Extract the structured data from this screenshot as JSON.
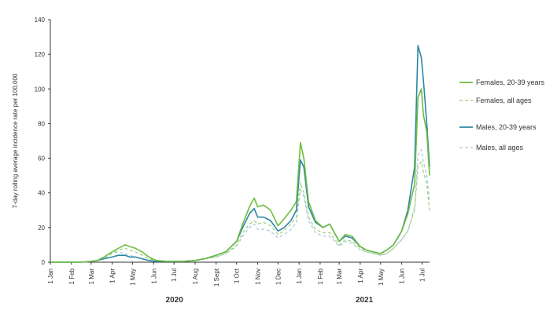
{
  "chart_data": {
    "type": "line",
    "title": "",
    "xlabel": "",
    "ylabel": "7-day rolling average incidence rate per 100,000",
    "ylim": [
      0,
      140
    ],
    "yticks": [
      "0",
      "20",
      "40",
      "60",
      "80",
      "100",
      "120",
      "140"
    ],
    "x_ticks": [
      "1 Jan",
      "1 Feb",
      "1 Mar",
      "1 Apr",
      "1 May",
      "1 Jun",
      "1 Jul",
      "1 Aug",
      "1 Sept",
      "1 Oct",
      "1 Nov",
      "1 Dec",
      "1 Jan",
      "1 Feb",
      "1 Mar",
      "1 Apr",
      "1 May",
      "1 Jun",
      "1 Jul"
    ],
    "year_labels": [
      "2020",
      "2021"
    ],
    "grid": false,
    "legend_position": "right",
    "x": [
      "2020-01-01",
      "2020-01-15",
      "2020-02-01",
      "2020-02-15",
      "2020-03-01",
      "2020-03-10",
      "2020-03-20",
      "2020-04-01",
      "2020-04-10",
      "2020-04-20",
      "2020-04-27",
      "2020-05-05",
      "2020-05-15",
      "2020-05-25",
      "2020-06-05",
      "2020-06-20",
      "2020-07-01",
      "2020-07-15",
      "2020-08-01",
      "2020-08-15",
      "2020-09-01",
      "2020-09-15",
      "2020-10-01",
      "2020-10-10",
      "2020-10-20",
      "2020-10-27",
      "2020-11-01",
      "2020-11-10",
      "2020-11-20",
      "2020-12-01",
      "2020-12-10",
      "2020-12-20",
      "2020-12-28",
      "2021-01-03",
      "2021-01-08",
      "2021-01-15",
      "2021-01-25",
      "2021-02-05",
      "2021-02-15",
      "2021-03-01",
      "2021-03-10",
      "2021-03-20",
      "2021-04-01",
      "2021-04-10",
      "2021-04-20",
      "2021-05-01",
      "2021-05-10",
      "2021-05-20",
      "2021-06-01",
      "2021-06-10",
      "2021-06-20",
      "2021-06-25",
      "2021-06-30",
      "2021-07-03",
      "2021-07-08",
      "2021-07-12"
    ],
    "series": [
      {
        "name": "Females, 20-39 years",
        "color": "#6dbd3f",
        "dashed": false,
        "values": [
          0,
          0,
          0,
          0,
          0.5,
          1,
          3,
          6,
          8,
          10,
          9,
          8,
          6,
          3,
          1,
          0.5,
          0.5,
          0.5,
          1,
          2,
          4,
          6,
          12,
          22,
          32,
          37,
          32,
          33,
          30,
          21,
          25,
          30,
          35,
          69,
          60,
          35,
          24,
          20,
          22,
          12,
          16,
          15,
          9,
          7,
          6,
          5,
          7,
          10,
          18,
          28,
          45,
          95,
          100,
          85,
          75,
          50
        ]
      },
      {
        "name": "Females, all ages",
        "color": "#9ccf7b",
        "dashed": true,
        "values": [
          0,
          0,
          0,
          0,
          0.5,
          1,
          3,
          5,
          7,
          8,
          7,
          6,
          4,
          2,
          1,
          0.5,
          0.5,
          0.5,
          1,
          2,
          3,
          5,
          10,
          17,
          22,
          24,
          22,
          23,
          21,
          16,
          18,
          22,
          26,
          46,
          40,
          26,
          19,
          17,
          17,
          10,
          13,
          12,
          8,
          6,
          5,
          4,
          5,
          8,
          13,
          18,
          30,
          55,
          58,
          52,
          45,
          30
        ]
      },
      {
        "name": "Males, 20-39 years",
        "color": "#2e86a6",
        "dashed": false,
        "values": [
          0,
          0,
          0,
          0,
          0.5,
          1,
          2,
          3,
          4,
          4,
          3,
          3,
          2,
          1,
          0.5,
          0.5,
          0.5,
          0.5,
          1,
          2,
          4,
          6,
          12,
          20,
          28,
          31,
          26,
          26,
          24,
          18,
          20,
          24,
          30,
          59,
          55,
          32,
          23,
          20,
          22,
          12,
          15,
          14,
          9,
          7,
          6,
          5,
          7,
          10,
          18,
          30,
          55,
          125,
          118,
          105,
          80,
          55
        ]
      },
      {
        "name": "Males, all ages",
        "color": "#a9c9d6",
        "dashed": true,
        "values": [
          0,
          0,
          0,
          0,
          0.5,
          1,
          2,
          5,
          6,
          5,
          4,
          3,
          2,
          1,
          0.5,
          0.5,
          0.5,
          0.5,
          1,
          2,
          3,
          5,
          9,
          15,
          20,
          22,
          19,
          19,
          18,
          14,
          16,
          19,
          23,
          42,
          38,
          24,
          17,
          15,
          15,
          9,
          12,
          11,
          7,
          6,
          5,
          4,
          5,
          8,
          13,
          18,
          32,
          62,
          65,
          58,
          50,
          35
        ]
      }
    ]
  }
}
